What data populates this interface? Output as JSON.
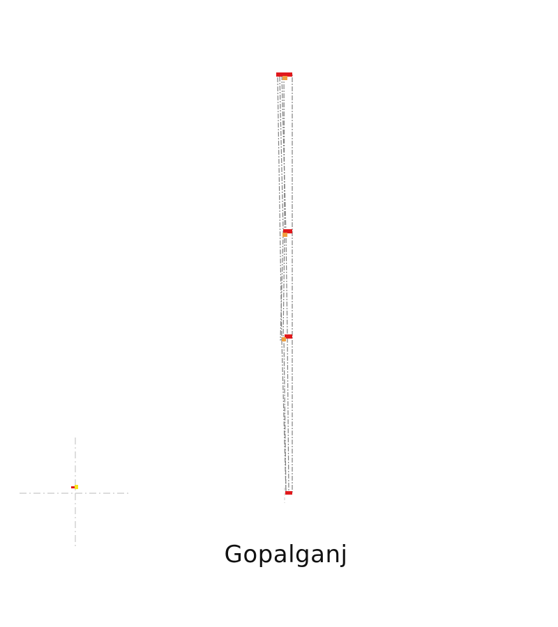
{
  "map": {
    "title": "Gopalganj",
    "colors": {
      "background": "#ffffff",
      "boundary": "#7f7f7f",
      "guide": "#c8c8c8",
      "marker_red": "#e0191c",
      "marker_orange": "#f0a040",
      "marker_yellow": "#f7e31a",
      "title": "#111111"
    }
  }
}
